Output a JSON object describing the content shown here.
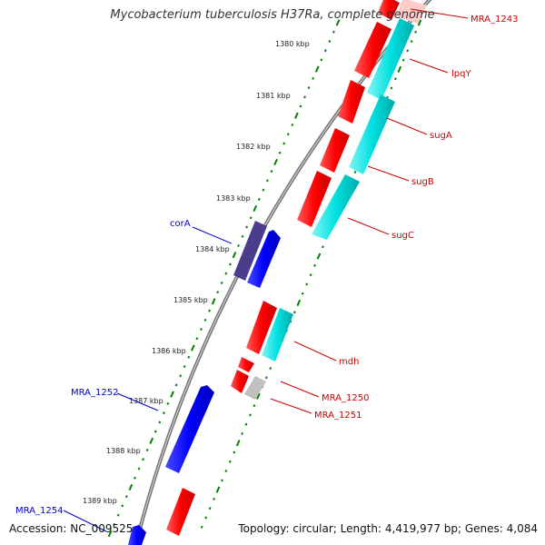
{
  "title": "Mycobacterium tuberculosis H37Ra, complete genome",
  "accession": "Accession: NC_009525",
  "summary": "Topology: circular; Length: 4,419,977 bp; Genes: 4,084",
  "colors": {
    "backbone": "#8a8a8a",
    "forward_gene": "#ff0000",
    "reverse_gene": "#0000ff",
    "forward_rna": "#00e0e0",
    "reverse_rna": "#4b3c8c",
    "pseudo": "#c0c0c0",
    "ticks": "#008000",
    "forward_label": "#cc0000",
    "reverse_label": "#0000cc"
  },
  "tick_labels": [
    "1380 kbp",
    "1381 kbp",
    "1382 kbp",
    "1383 kbp",
    "1384 kbp",
    "1385 kbp",
    "1386 kbp",
    "1387 kbp",
    "1388 kbp",
    "1389 kbp"
  ],
  "forward_labels": [
    "MRA_1243",
    "lpqY",
    "sugA",
    "sugB",
    "sugC",
    "mdh",
    "MRA_1250",
    "MRA_1251"
  ],
  "reverse_labels": [
    "corA",
    "MRA_1252",
    "MRA_1254"
  ]
}
